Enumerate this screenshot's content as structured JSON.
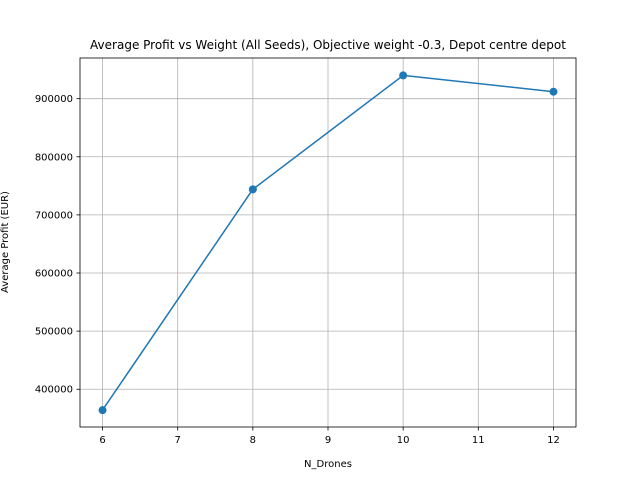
{
  "chart_data": {
    "type": "line",
    "title": "Average Profit vs Weight (All Seeds), Objective weight -0.3, Depot centre depot",
    "xlabel": "N_Drones",
    "ylabel": "Average Profit (EUR)",
    "xlim": [
      5.7,
      12.3
    ],
    "ylim": [
      335000,
      970000
    ],
    "xticks": [
      6,
      7,
      8,
      9,
      10,
      11,
      12
    ],
    "yticks": [
      400000,
      500000,
      600000,
      700000,
      800000,
      900000
    ],
    "grid": true,
    "legend": "none",
    "series": [
      {
        "x": [
          6,
          8,
          10,
          12
        ],
        "y": [
          364000,
          744000,
          940000,
          912000
        ],
        "color": "#1f77b4",
        "marker": "circle"
      }
    ]
  }
}
